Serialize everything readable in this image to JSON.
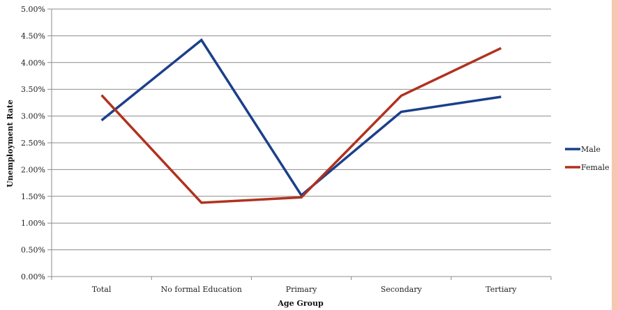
{
  "chart_data": {
    "type": "line",
    "categories": [
      "Total",
      "No formal Education",
      "Primary",
      "Secondary",
      "Tertiary"
    ],
    "series": [
      {
        "name": "Male",
        "color": "#1b3f8b",
        "values": [
          0.0292,
          0.0442,
          0.0152,
          0.0308,
          0.0336
        ]
      },
      {
        "name": "Female",
        "color": "#b0321f",
        "values": [
          0.0339,
          0.0138,
          0.0148,
          0.0338,
          0.0427
        ]
      }
    ],
    "ylim": [
      0,
      0.05
    ],
    "yticks": [
      "0.00%",
      "0.50%",
      "1.00%",
      "1.50%",
      "2.00%",
      "2.50%",
      "3.00%",
      "3.50%",
      "4.00%",
      "4.50%",
      "5.00%"
    ],
    "xlabel": "Age Group",
    "ylabel": "Unemployment Rate",
    "grid": "horizontal",
    "legend_position": "right",
    "accent_border_color": "#f6c6b3"
  }
}
